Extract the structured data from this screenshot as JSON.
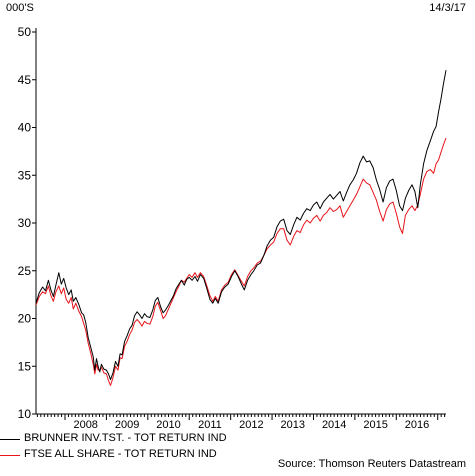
{
  "header": {
    "unit": "000'S",
    "date": "14/3/17"
  },
  "footer": {
    "source": "Source: Thomson Reuters Datastream"
  },
  "chart_data": {
    "type": "line",
    "title": "",
    "xlabel": "",
    "ylabel": "000'S",
    "ylim": [
      10,
      50
    ],
    "xlim": [
      2007.3,
      2017.2
    ],
    "yticks": [
      10,
      15,
      20,
      25,
      30,
      35,
      40,
      45,
      50
    ],
    "xtick_labels": [
      "2008",
      "2009",
      "2010",
      "2011",
      "2012",
      "2013",
      "2014",
      "2015",
      "2016"
    ],
    "grid": false,
    "legend_position": "bottom-left",
    "series": [
      {
        "name": "BRUNNER INV.TST. - TOT RETURN IND",
        "color": "#000000",
        "points": [
          [
            2007.3,
            21.6
          ],
          [
            2007.38,
            22.7
          ],
          [
            2007.46,
            23.3
          ],
          [
            2007.53,
            22.9
          ],
          [
            2007.6,
            24.0
          ],
          [
            2007.66,
            23.0
          ],
          [
            2007.72,
            22.3
          ],
          [
            2007.78,
            23.5
          ],
          [
            2007.85,
            24.8
          ],
          [
            2007.91,
            23.6
          ],
          [
            2007.97,
            24.2
          ],
          [
            2008.03,
            23.2
          ],
          [
            2008.09,
            22.5
          ],
          [
            2008.15,
            23.0
          ],
          [
            2008.2,
            21.8
          ],
          [
            2008.26,
            22.2
          ],
          [
            2008.33,
            21.5
          ],
          [
            2008.4,
            20.6
          ],
          [
            2008.45,
            20.4
          ],
          [
            2008.5,
            19.6
          ],
          [
            2008.56,
            18.0
          ],
          [
            2008.62,
            17.0
          ],
          [
            2008.68,
            16.0
          ],
          [
            2008.72,
            14.6
          ],
          [
            2008.76,
            15.8
          ],
          [
            2008.8,
            15.0
          ],
          [
            2008.84,
            14.4
          ],
          [
            2008.88,
            15.2
          ],
          [
            2008.94,
            14.7
          ],
          [
            2009.0,
            14.6
          ],
          [
            2009.05,
            14.2
          ],
          [
            2009.1,
            13.6
          ],
          [
            2009.16,
            14.3
          ],
          [
            2009.22,
            15.5
          ],
          [
            2009.28,
            15.0
          ],
          [
            2009.33,
            16.3
          ],
          [
            2009.38,
            16.2
          ],
          [
            2009.44,
            17.6
          ],
          [
            2009.5,
            18.2
          ],
          [
            2009.56,
            18.9
          ],
          [
            2009.62,
            19.3
          ],
          [
            2009.68,
            20.3
          ],
          [
            2009.74,
            20.7
          ],
          [
            2009.8,
            20.4
          ],
          [
            2009.86,
            20.0
          ],
          [
            2009.92,
            20.5
          ],
          [
            2009.98,
            20.2
          ],
          [
            2010.05,
            20.1
          ],
          [
            2010.12,
            20.9
          ],
          [
            2010.18,
            21.9
          ],
          [
            2010.24,
            22.2
          ],
          [
            2010.31,
            21.2
          ],
          [
            2010.37,
            20.6
          ],
          [
            2010.43,
            20.9
          ],
          [
            2010.5,
            21.4
          ],
          [
            2010.56,
            21.9
          ],
          [
            2010.62,
            22.4
          ],
          [
            2010.68,
            23.1
          ],
          [
            2010.75,
            23.6
          ],
          [
            2010.81,
            24.0
          ],
          [
            2010.88,
            23.5
          ],
          [
            2010.94,
            24.1
          ],
          [
            2011.0,
            24.3
          ],
          [
            2011.07,
            24.0
          ],
          [
            2011.14,
            24.4
          ],
          [
            2011.2,
            23.9
          ],
          [
            2011.27,
            24.6
          ],
          [
            2011.35,
            24.2
          ],
          [
            2011.42,
            23.2
          ],
          [
            2011.5,
            22.0
          ],
          [
            2011.57,
            21.6
          ],
          [
            2011.63,
            22.1
          ],
          [
            2011.7,
            21.6
          ],
          [
            2011.78,
            22.8
          ],
          [
            2011.86,
            23.3
          ],
          [
            2011.94,
            23.6
          ],
          [
            2012.02,
            24.4
          ],
          [
            2012.1,
            25.0
          ],
          [
            2012.18,
            24.4
          ],
          [
            2012.26,
            23.6
          ],
          [
            2012.33,
            23.0
          ],
          [
            2012.41,
            24.0
          ],
          [
            2012.49,
            24.6
          ],
          [
            2012.56,
            25.0
          ],
          [
            2012.64,
            25.6
          ],
          [
            2012.72,
            25.8
          ],
          [
            2012.8,
            26.6
          ],
          [
            2012.88,
            27.6
          ],
          [
            2012.96,
            28.2
          ],
          [
            2013.04,
            28.5
          ],
          [
            2013.12,
            29.6
          ],
          [
            2013.2,
            30.2
          ],
          [
            2013.28,
            30.4
          ],
          [
            2013.36,
            29.2
          ],
          [
            2013.44,
            28.8
          ],
          [
            2013.52,
            29.8
          ],
          [
            2013.6,
            30.6
          ],
          [
            2013.68,
            30.3
          ],
          [
            2013.76,
            31.0
          ],
          [
            2013.84,
            31.5
          ],
          [
            2013.92,
            31.3
          ],
          [
            2014.0,
            31.9
          ],
          [
            2014.08,
            32.2
          ],
          [
            2014.16,
            31.5
          ],
          [
            2014.24,
            32.2
          ],
          [
            2014.32,
            32.6
          ],
          [
            2014.4,
            33.0
          ],
          [
            2014.48,
            32.5
          ],
          [
            2014.56,
            32.9
          ],
          [
            2014.64,
            33.3
          ],
          [
            2014.72,
            32.3
          ],
          [
            2014.8,
            33.2
          ],
          [
            2014.88,
            34.0
          ],
          [
            2014.96,
            34.5
          ],
          [
            2015.04,
            35.2
          ],
          [
            2015.12,
            36.3
          ],
          [
            2015.2,
            37.0
          ],
          [
            2015.28,
            36.4
          ],
          [
            2015.36,
            36.5
          ],
          [
            2015.44,
            35.8
          ],
          [
            2015.52,
            34.5
          ],
          [
            2015.6,
            33.5
          ],
          [
            2015.68,
            32.2
          ],
          [
            2015.76,
            33.7
          ],
          [
            2015.84,
            34.4
          ],
          [
            2015.92,
            34.6
          ],
          [
            2016.0,
            33.4
          ],
          [
            2016.08,
            31.8
          ],
          [
            2016.15,
            31.3
          ],
          [
            2016.22,
            32.6
          ],
          [
            2016.3,
            33.4
          ],
          [
            2016.38,
            34.0
          ],
          [
            2016.45,
            33.3
          ],
          [
            2016.52,
            31.6
          ],
          [
            2016.58,
            34.0
          ],
          [
            2016.66,
            36.2
          ],
          [
            2016.74,
            37.6
          ],
          [
            2016.82,
            38.6
          ],
          [
            2016.9,
            39.6
          ],
          [
            2016.96,
            40.1
          ],
          [
            2017.02,
            41.6
          ],
          [
            2017.08,
            43.0
          ],
          [
            2017.14,
            44.6
          ],
          [
            2017.2,
            46.0
          ]
        ]
      },
      {
        "name": "FTSE ALL SHARE - TOT RETURN IND",
        "color": "#e8141a",
        "points": [
          [
            2007.3,
            21.4
          ],
          [
            2007.38,
            22.3
          ],
          [
            2007.46,
            22.8
          ],
          [
            2007.53,
            22.6
          ],
          [
            2007.6,
            23.4
          ],
          [
            2007.66,
            22.4
          ],
          [
            2007.72,
            21.8
          ],
          [
            2007.78,
            22.8
          ],
          [
            2007.85,
            23.4
          ],
          [
            2007.91,
            22.6
          ],
          [
            2007.97,
            23.2
          ],
          [
            2008.03,
            22.0
          ],
          [
            2008.09,
            21.6
          ],
          [
            2008.15,
            22.2
          ],
          [
            2008.2,
            21.0
          ],
          [
            2008.26,
            21.6
          ],
          [
            2008.33,
            20.8
          ],
          [
            2008.4,
            20.2
          ],
          [
            2008.45,
            19.5
          ],
          [
            2008.5,
            18.8
          ],
          [
            2008.56,
            17.4
          ],
          [
            2008.62,
            16.4
          ],
          [
            2008.68,
            15.2
          ],
          [
            2008.72,
            14.2
          ],
          [
            2008.76,
            15.2
          ],
          [
            2008.8,
            14.6
          ],
          [
            2008.84,
            14.6
          ],
          [
            2008.88,
            14.9
          ],
          [
            2008.94,
            14.3
          ],
          [
            2009.0,
            14.2
          ],
          [
            2009.05,
            13.5
          ],
          [
            2009.1,
            13.0
          ],
          [
            2009.16,
            13.8
          ],
          [
            2009.22,
            15.0
          ],
          [
            2009.28,
            14.6
          ],
          [
            2009.33,
            15.9
          ],
          [
            2009.38,
            15.8
          ],
          [
            2009.44,
            17.1
          ],
          [
            2009.5,
            17.6
          ],
          [
            2009.56,
            18.3
          ],
          [
            2009.62,
            18.8
          ],
          [
            2009.68,
            19.6
          ],
          [
            2009.74,
            19.9
          ],
          [
            2009.8,
            19.6
          ],
          [
            2009.86,
            19.2
          ],
          [
            2009.92,
            19.7
          ],
          [
            2009.98,
            19.5
          ],
          [
            2010.05,
            19.4
          ],
          [
            2010.12,
            20.2
          ],
          [
            2010.18,
            21.3
          ],
          [
            2010.24,
            21.7
          ],
          [
            2010.31,
            20.8
          ],
          [
            2010.37,
            20.0
          ],
          [
            2010.43,
            20.3
          ],
          [
            2010.5,
            21.0
          ],
          [
            2010.56,
            21.6
          ],
          [
            2010.62,
            22.2
          ],
          [
            2010.68,
            22.8
          ],
          [
            2010.75,
            23.4
          ],
          [
            2010.81,
            24.0
          ],
          [
            2010.88,
            23.8
          ],
          [
            2010.94,
            24.2
          ],
          [
            2011.0,
            24.6
          ],
          [
            2011.07,
            24.3
          ],
          [
            2011.14,
            24.8
          ],
          [
            2011.2,
            24.3
          ],
          [
            2011.27,
            24.8
          ],
          [
            2011.35,
            24.4
          ],
          [
            2011.42,
            23.5
          ],
          [
            2011.5,
            22.4
          ],
          [
            2011.57,
            21.8
          ],
          [
            2011.63,
            22.3
          ],
          [
            2011.7,
            21.8
          ],
          [
            2011.78,
            23.0
          ],
          [
            2011.86,
            23.5
          ],
          [
            2011.94,
            23.8
          ],
          [
            2012.02,
            24.6
          ],
          [
            2012.1,
            25.1
          ],
          [
            2012.18,
            24.5
          ],
          [
            2012.26,
            23.9
          ],
          [
            2012.33,
            23.4
          ],
          [
            2012.41,
            24.4
          ],
          [
            2012.49,
            25.0
          ],
          [
            2012.56,
            25.3
          ],
          [
            2012.64,
            25.8
          ],
          [
            2012.72,
            26.0
          ],
          [
            2012.8,
            26.6
          ],
          [
            2012.88,
            27.3
          ],
          [
            2012.96,
            27.7
          ],
          [
            2013.04,
            28.0
          ],
          [
            2013.12,
            28.9
          ],
          [
            2013.2,
            29.4
          ],
          [
            2013.28,
            29.4
          ],
          [
            2013.36,
            28.2
          ],
          [
            2013.44,
            27.7
          ],
          [
            2013.52,
            28.6
          ],
          [
            2013.6,
            29.2
          ],
          [
            2013.68,
            29.0
          ],
          [
            2013.76,
            29.8
          ],
          [
            2013.84,
            30.3
          ],
          [
            2013.92,
            30.0
          ],
          [
            2014.0,
            30.5
          ],
          [
            2014.08,
            30.8
          ],
          [
            2014.16,
            30.2
          ],
          [
            2014.24,
            30.8
          ],
          [
            2014.32,
            31.1
          ],
          [
            2014.4,
            31.6
          ],
          [
            2014.48,
            31.2
          ],
          [
            2014.56,
            31.4
          ],
          [
            2014.64,
            31.8
          ],
          [
            2014.72,
            30.6
          ],
          [
            2014.8,
            31.2
          ],
          [
            2014.88,
            31.8
          ],
          [
            2014.96,
            32.4
          ],
          [
            2015.04,
            33.0
          ],
          [
            2015.12,
            33.8
          ],
          [
            2015.2,
            34.6
          ],
          [
            2015.28,
            34.2
          ],
          [
            2015.36,
            34.0
          ],
          [
            2015.44,
            33.2
          ],
          [
            2015.52,
            32.4
          ],
          [
            2015.6,
            31.2
          ],
          [
            2015.68,
            30.2
          ],
          [
            2015.76,
            31.4
          ],
          [
            2015.84,
            32.0
          ],
          [
            2015.92,
            32.2
          ],
          [
            2016.0,
            31.0
          ],
          [
            2016.08,
            29.6
          ],
          [
            2016.15,
            28.9
          ],
          [
            2016.22,
            30.8
          ],
          [
            2016.3,
            31.4
          ],
          [
            2016.38,
            31.8
          ],
          [
            2016.45,
            31.3
          ],
          [
            2016.52,
            31.9
          ],
          [
            2016.58,
            33.0
          ],
          [
            2016.66,
            34.6
          ],
          [
            2016.74,
            35.4
          ],
          [
            2016.82,
            35.6
          ],
          [
            2016.9,
            35.2
          ],
          [
            2016.96,
            36.2
          ],
          [
            2017.02,
            36.6
          ],
          [
            2017.08,
            37.4
          ],
          [
            2017.14,
            38.2
          ],
          [
            2017.2,
            38.9
          ]
        ]
      }
    ]
  }
}
